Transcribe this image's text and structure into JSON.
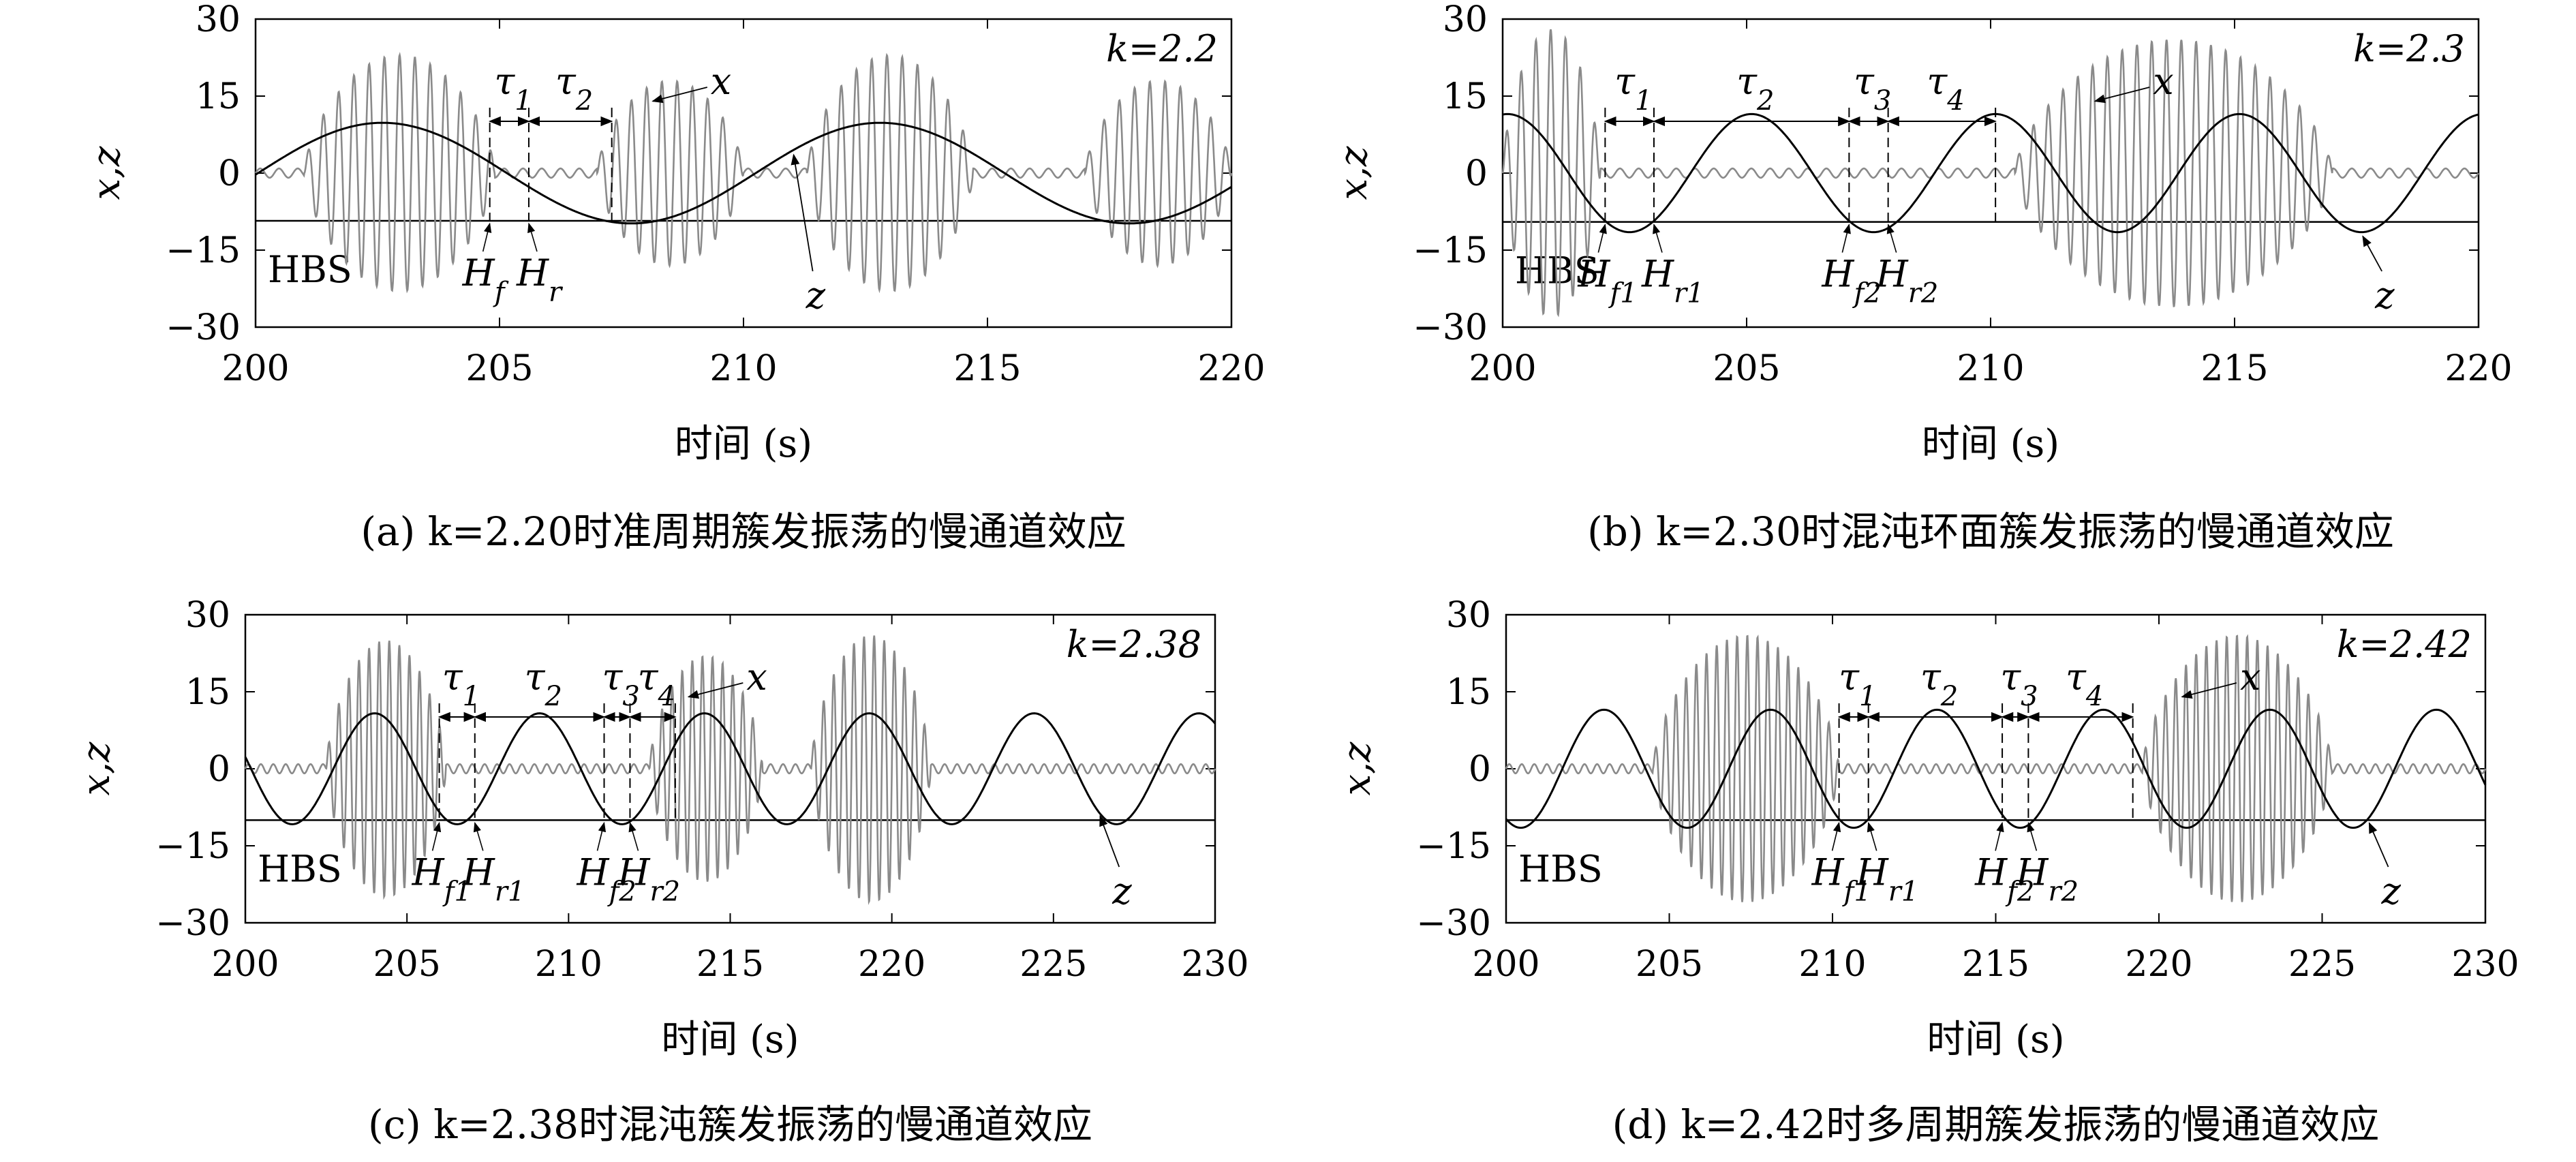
{
  "chart_data": [
    {
      "type": "line",
      "k_label": "k=2.2",
      "caption": "(a) k=2.20时准周期簇发振荡的慢通道效应",
      "xlabel": "时间 (s)",
      "ylabel": "x,z",
      "xlim": [
        200,
        220
      ],
      "ylim": [
        -30,
        30
      ],
      "xticks": [
        "200",
        "205",
        "210",
        "215",
        "220"
      ],
      "yticks": [
        "30",
        "15",
        "0",
        "−15",
        "−30"
      ],
      "hbs_label": "HBS",
      "hbs_level": -9.3,
      "z_wave": {
        "period": 10.2,
        "amplitude": 9.8,
        "offset": 0,
        "x0": 202.6
      },
      "x_bursts": [
        {
          "t0": 201.0,
          "t1": 204.9,
          "amp": 23,
          "freq": 3.2
        },
        {
          "t0": 207.0,
          "t1": 210.0,
          "amp": 18,
          "freq": 3.2
        },
        {
          "t0": 211.3,
          "t1": 214.7,
          "amp": 23,
          "freq": 3.2
        },
        {
          "t0": 217.0,
          "t1": 220.0,
          "amp": 18,
          "freq": 3.2
        }
      ],
      "dashed_x": [
        204.8,
        205.6,
        207.3
      ],
      "tau_labels": [
        "τ1",
        "τ2"
      ],
      "points": [
        "Hf",
        "Hr"
      ],
      "series": [
        {
          "name": "x"
        },
        {
          "name": "z"
        }
      ]
    },
    {
      "type": "line",
      "k_label": "k=2.3",
      "caption": "(b) k=2.30时混沌环面簇发振荡的慢通道效应",
      "xlabel": "时间 (s)",
      "ylabel": "x,z",
      "xlim": [
        200,
        220
      ],
      "ylim": [
        -30,
        30
      ],
      "xticks": [
        "200",
        "205",
        "210",
        "215",
        "220"
      ],
      "yticks": [
        "30",
        "15",
        "0",
        "−15",
        "−30"
      ],
      "hbs_label": "HBS",
      "hbs_level": -9.5,
      "z_wave": {
        "period": 5.0,
        "amplitude": 11.5,
        "offset": 0,
        "x0": 205.1
      },
      "x_bursts": [
        {
          "t0": 200.0,
          "t1": 202.0,
          "amp": 28,
          "freq": 3.3
        },
        {
          "t0": 210.5,
          "t1": 217.0,
          "amp": 26,
          "freq": 3.3
        }
      ],
      "dashed_x": [
        202.1,
        203.1,
        207.1,
        207.9,
        210.1
      ],
      "tau_labels": [
        "τ1",
        "τ2",
        "τ3",
        "τ4"
      ],
      "points": [
        "Hf1",
        "Hr1",
        "Hf2",
        "Hr2"
      ],
      "series": [
        {
          "name": "x"
        },
        {
          "name": "z"
        }
      ]
    },
    {
      "type": "line",
      "k_label": "k=2.38",
      "caption": "(c) k=2.38时混沌簇发振荡的慢通道效应",
      "xlabel": "时间 (s)",
      "ylabel": "x,z",
      "xlim": [
        200,
        230
      ],
      "ylim": [
        -30,
        30
      ],
      "xticks": [
        "200",
        "205",
        "210",
        "215",
        "220",
        "225",
        "230"
      ],
      "yticks": [
        "30",
        "15",
        "0",
        "−15",
        "−30"
      ],
      "hbs_label": "HBS",
      "hbs_level": -10,
      "z_wave": {
        "period": 5.1,
        "amplitude": 10.8,
        "offset": 0,
        "x0": 204.0
      },
      "x_bursts": [
        {
          "t0": 202.5,
          "t1": 206.2,
          "amp": 25,
          "freq": 3.2
        },
        {
          "t0": 212.5,
          "t1": 216.0,
          "amp": 22,
          "freq": 3.2
        },
        {
          "t0": 217.5,
          "t1": 221.2,
          "amp": 26,
          "freq": 3.2
        }
      ],
      "dashed_x": [
        206.0,
        207.1,
        211.1,
        211.9,
        213.3
      ],
      "tau_labels": [
        "τ1",
        "τ2",
        "τ3",
        "τ4"
      ],
      "points": [
        "Hf1",
        "Hr1",
        "Hf2",
        "Hr2"
      ],
      "series": [
        {
          "name": "x"
        },
        {
          "name": "z"
        }
      ]
    },
    {
      "type": "line",
      "k_label": "k=2.42",
      "caption": "(d) k=2.42时多周期簇发振荡的慢通道效应",
      "xlabel": "时间 (s)",
      "ylabel": "x,z",
      "xlim": [
        200,
        230
      ],
      "ylim": [
        -30,
        30
      ],
      "xticks": [
        "200",
        "205",
        "210",
        "215",
        "220",
        "225",
        "230"
      ],
      "yticks": [
        "30",
        "15",
        "0",
        "−15",
        "−30"
      ],
      "hbs_label": "HBS",
      "hbs_level": -10,
      "z_wave": {
        "period": 5.1,
        "amplitude": 11.5,
        "offset": 0,
        "x0": 203.0
      },
      "x_bursts": [
        {
          "t0": 204.5,
          "t1": 210.2,
          "amp": 26,
          "freq": 3.2
        },
        {
          "t0": 219.5,
          "t1": 225.3,
          "amp": 26,
          "freq": 3.2
        }
      ],
      "dashed_x": [
        210.2,
        211.1,
        215.2,
        216.0,
        219.2
      ],
      "tau_labels": [
        "τ1",
        "τ2",
        "τ3",
        "τ4"
      ],
      "points": [
        "Hf1",
        "Hr1",
        "Hf2",
        "Hr2"
      ],
      "series": [
        {
          "name": "x"
        },
        {
          "name": "z"
        }
      ]
    }
  ]
}
